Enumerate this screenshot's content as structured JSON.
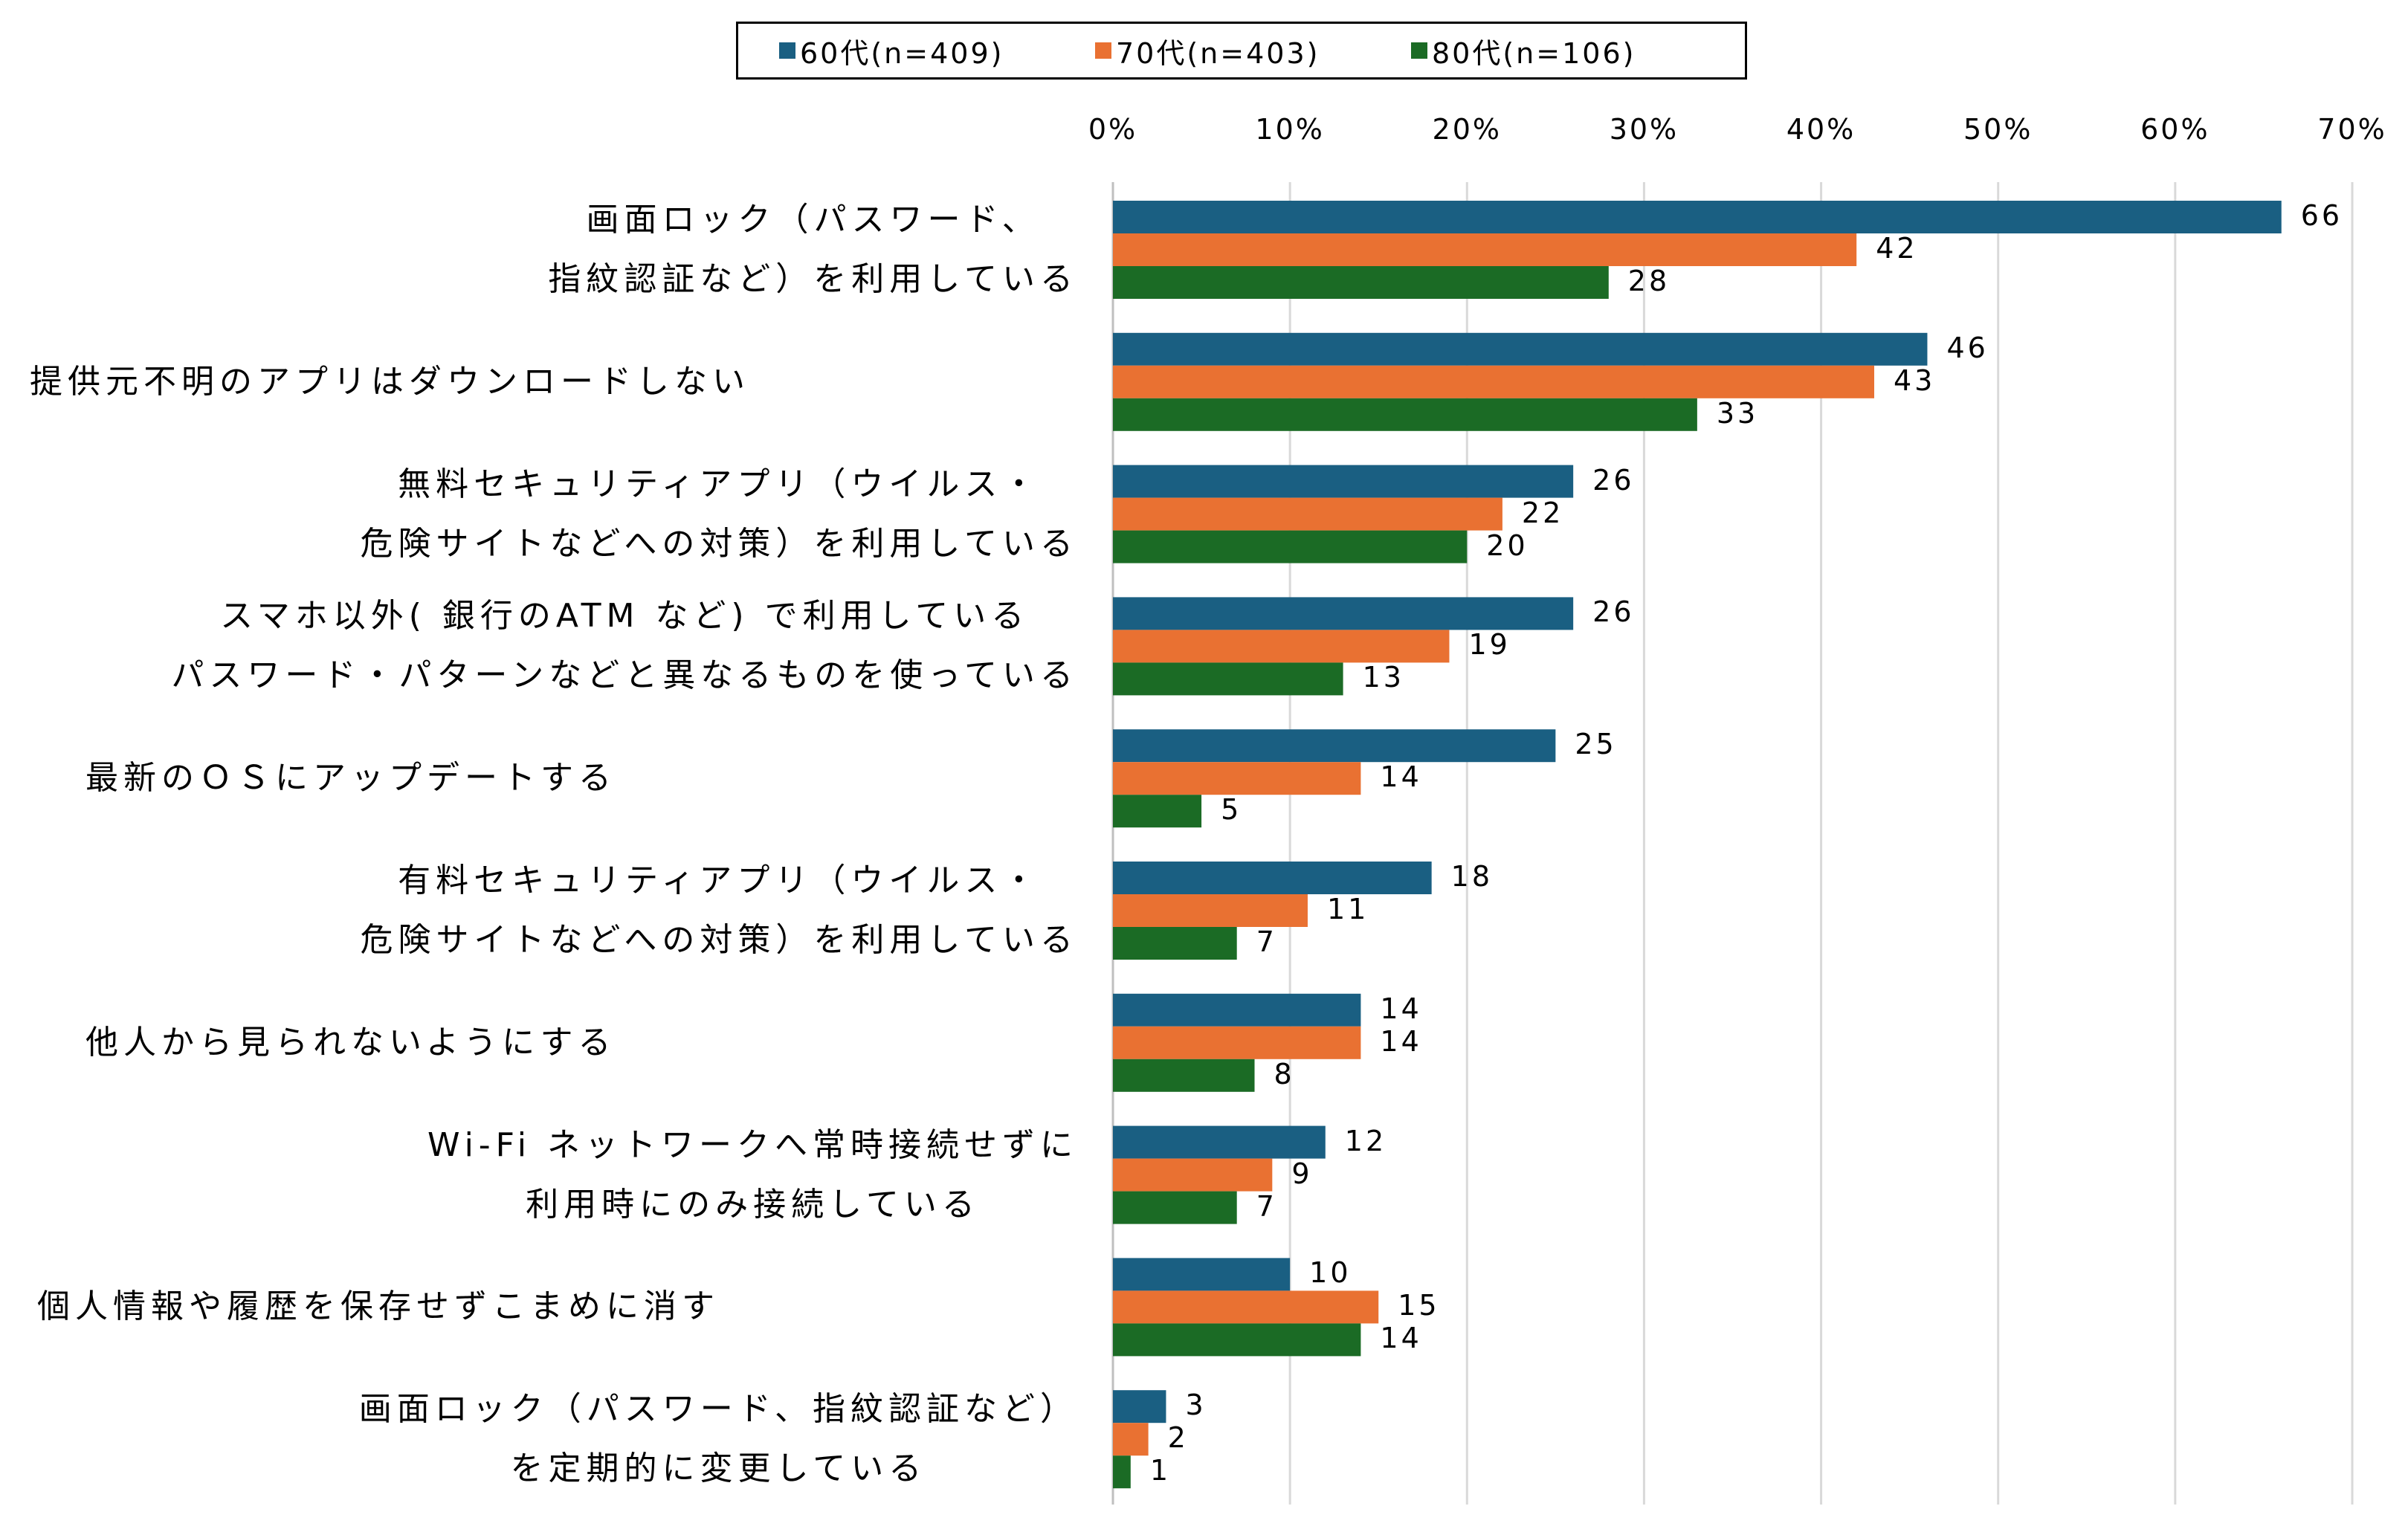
{
  "chart_data": {
    "type": "bar",
    "orientation": "horizontal",
    "title": "",
    "xlabel": "",
    "ylabel": "",
    "xlim": [
      0,
      70
    ],
    "x_ticks": [
      "0%",
      "10%",
      "20%",
      "30%",
      "40%",
      "50%",
      "60%",
      "70%"
    ],
    "grid": true,
    "legend_position": "top",
    "categories": [
      [
        "画面ロック（パスワード、",
        "指紋認証など）を利用している"
      ],
      [
        "提供元不明のアプリはダウンロードしない"
      ],
      [
        "無料セキュリティアプリ（ウイルス・",
        "危険サイトなどへの対策）を利用している"
      ],
      [
        "スマホ以外( 銀行のATM など) で利用している",
        "パスワード・パターンなどと異なるものを使っている"
      ],
      [
        "最新のＯＳにアップデートする"
      ],
      [
        "有料セキュリティアプリ（ウイルス・",
        "危険サイトなどへの対策）を利用している"
      ],
      [
        "他人から見られないようにする"
      ],
      [
        "Wi-Fi ネットワークへ常時接続せずに",
        "利用時にのみ接続している"
      ],
      [
        "個人情報や履歴を保存せずこまめに消す"
      ],
      [
        "画面ロック（パスワード、指紋認証など）",
        "を定期的に変更している"
      ]
    ],
    "category_align": [
      "center",
      "left",
      "center",
      "center",
      "left",
      "center",
      "left",
      "center",
      "left",
      "center"
    ],
    "series": [
      {
        "name": "60代(n=409)",
        "color": "#1A5F82",
        "values": [
          66,
          46,
          26,
          26,
          25,
          18,
          14,
          12,
          10,
          3
        ]
      },
      {
        "name": "70代(n=403)",
        "color": "#E97132",
        "values": [
          42,
          43,
          22,
          19,
          14,
          11,
          14,
          9,
          15,
          2
        ]
      },
      {
        "name": "80代(n=106)",
        "color": "#1B6B25",
        "values": [
          28,
          33,
          20,
          13,
          5,
          7,
          8,
          7,
          14,
          1
        ]
      }
    ],
    "gridline_color": "#D9D9D9",
    "unit": "%"
  }
}
